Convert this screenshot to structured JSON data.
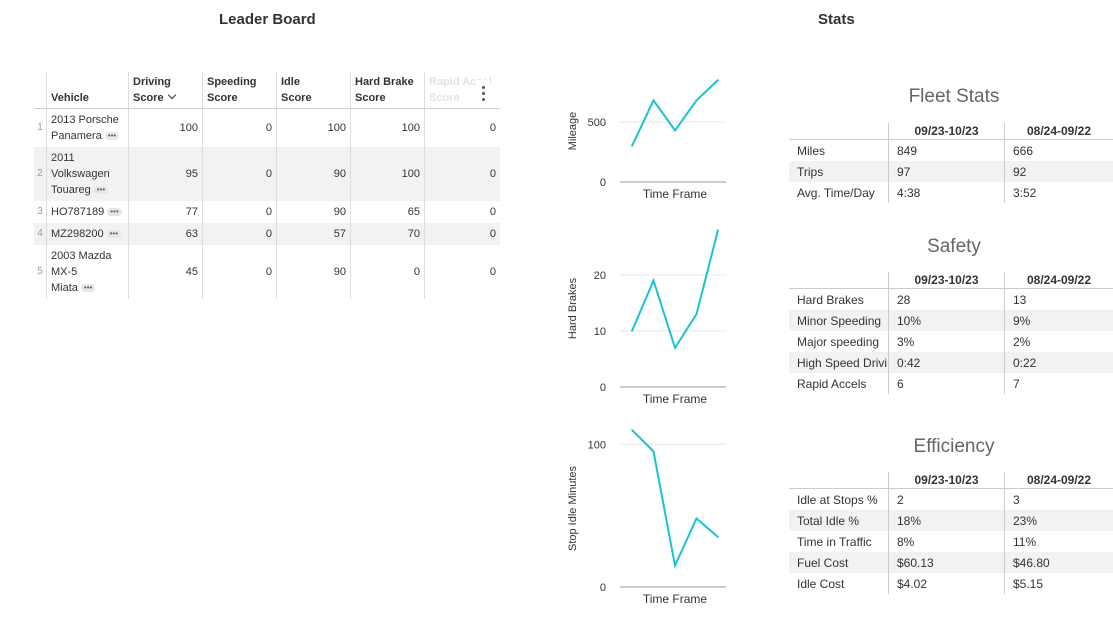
{
  "titles": {
    "leaderboard": "Leader Board",
    "stats": "Stats"
  },
  "leaderboard": {
    "columns": [
      {
        "l1": "",
        "l2": "Vehicle"
      },
      {
        "l1": "Driving",
        "l2": "Score"
      },
      {
        "l1": "Speeding",
        "l2": "Score"
      },
      {
        "l1": "Idle",
        "l2": "Score"
      },
      {
        "l1": "Hard Brake",
        "l2": "Score"
      },
      {
        "l1": "Rapid Accel",
        "l2": "Score"
      }
    ],
    "rows": [
      {
        "idx": "1",
        "vehicle": [
          "2013 Porsche",
          "Panamera"
        ],
        "driving": "100",
        "speeding": "0",
        "idle": "100",
        "hardbrake": "100",
        "rapid": "0"
      },
      {
        "idx": "2",
        "vehicle": [
          "2011",
          "Volkswagen",
          "Touareg"
        ],
        "driving": "95",
        "speeding": "0",
        "idle": "90",
        "hardbrake": "100",
        "rapid": "0"
      },
      {
        "idx": "3",
        "vehicle": [
          "HO787189"
        ],
        "driving": "77",
        "speeding": "0",
        "idle": "90",
        "hardbrake": "65",
        "rapid": "0"
      },
      {
        "idx": "4",
        "vehicle": [
          "MZ298200"
        ],
        "driving": "63",
        "speeding": "0",
        "idle": "57",
        "hardbrake": "70",
        "rapid": "0"
      },
      {
        "idx": "5",
        "vehicle": [
          "2003 Mazda",
          "MX-5",
          "Miata"
        ],
        "driving": "45",
        "speeding": "0",
        "idle": "90",
        "hardbrake": "0",
        "rapid": "0"
      }
    ],
    "more_dots": "•••"
  },
  "chart_data": [
    {
      "type": "line",
      "ylabel": "Mileage",
      "xlabel": "Time Frame",
      "yticks": [
        "0",
        "500"
      ],
      "ylim": [
        0,
        850
      ],
      "values": [
        300,
        680,
        430,
        680,
        850
      ],
      "color": "#19c3d3"
    },
    {
      "type": "line",
      "ylabel": "Hard Brakes",
      "xlabel": "Time Frame",
      "yticks": [
        "0",
        "10",
        "20"
      ],
      "ylim": [
        0,
        28
      ],
      "values": [
        10,
        19,
        7,
        13,
        28
      ],
      "color": "#19c3d3"
    },
    {
      "type": "line",
      "ylabel": "Stop Idle Minutes",
      "xlabel": "Time Frame",
      "yticks": [
        "0",
        "100"
      ],
      "ylim": [
        0,
        110
      ],
      "values": [
        110,
        95,
        15,
        48,
        35
      ],
      "color": "#19c3d3"
    }
  ],
  "stat_tables": [
    {
      "title": "Fleet Stats",
      "col_a": "09/23-10/23",
      "col_b": "08/24-09/22",
      "rows": [
        {
          "k": "Miles",
          "a": "849",
          "b": "666"
        },
        {
          "k": "Trips",
          "a": "97",
          "b": "92"
        },
        {
          "k": "Avg. Time/Day",
          "a": "4:38",
          "b": "3:52"
        }
      ]
    },
    {
      "title": "Safety",
      "col_a": "09/23-10/23",
      "col_b": "08/24-09/22",
      "rows": [
        {
          "k": "Hard Brakes",
          "a": "28",
          "b": "13"
        },
        {
          "k": "Minor Speeding",
          "a": "10%",
          "b": "9%"
        },
        {
          "k": "Major speeding",
          "a": "3%",
          "b": "2%"
        },
        {
          "k": "High Speed Drivi",
          "a": "0:42",
          "b": "0:22"
        },
        {
          "k": "Rapid Accels",
          "a": "6",
          "b": "7"
        }
      ]
    },
    {
      "title": "Efficiency",
      "col_a": "09/23-10/23",
      "col_b": "08/24-09/22",
      "rows": [
        {
          "k": "Idle at Stops %",
          "a": "2",
          "b": "3"
        },
        {
          "k": "Total Idle %",
          "a": "18%",
          "b": "23%"
        },
        {
          "k": "Time in Traffic",
          "a": "8%",
          "b": "11%"
        },
        {
          "k": "Fuel Cost",
          "a": "$60.13",
          "b": "$46.80"
        },
        {
          "k": "Idle Cost",
          "a": "$4.02",
          "b": "$5.15"
        }
      ]
    }
  ]
}
